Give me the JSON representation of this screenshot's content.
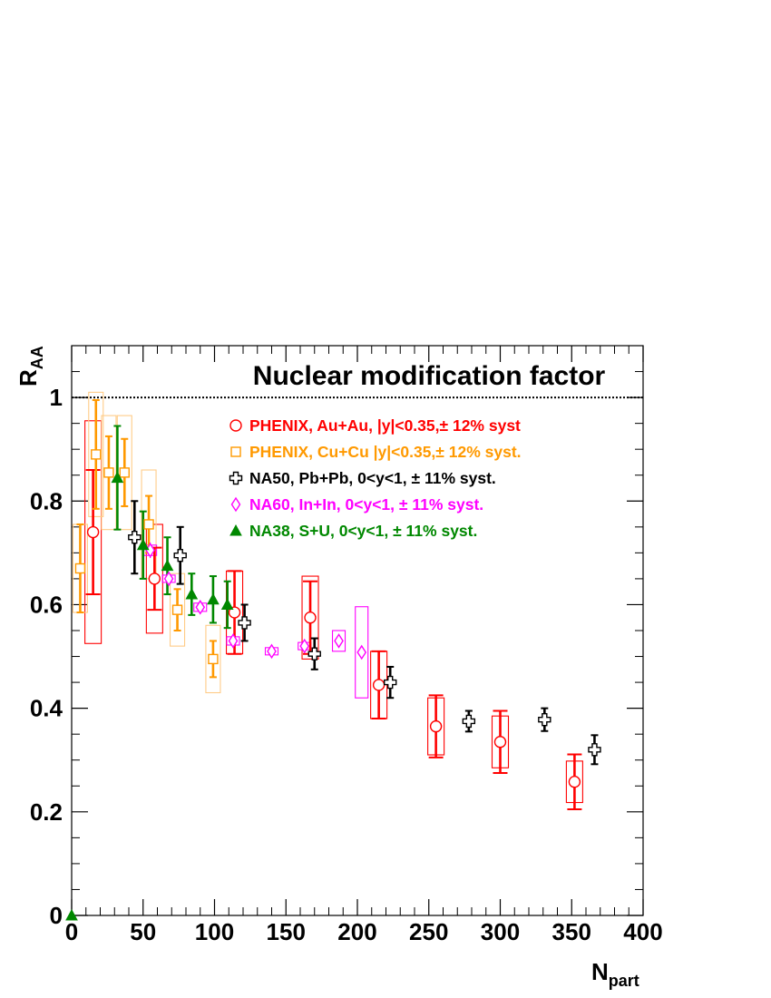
{
  "chart_data": {
    "type": "scatter",
    "title": "Nuclear modification factor",
    "xlabel_main": "N",
    "xlabel_sub": "part",
    "ylabel_main": "R",
    "ylabel_sub": "AA",
    "xlim": [
      0,
      400
    ],
    "ylim": [
      0,
      1.1
    ],
    "x_ticks": [
      0,
      50,
      100,
      150,
      200,
      250,
      300,
      350,
      400
    ],
    "x_tick_labels": [
      "0",
      "50",
      "100",
      "150",
      "200",
      "250",
      "300",
      "350",
      "400"
    ],
    "y_ticks": [
      0,
      0.2,
      0.4,
      0.6,
      0.8,
      1
    ],
    "y_tick_labels": [
      "0",
      "0.2",
      "0.4",
      "0.6",
      "0.8",
      "1"
    ],
    "reference_line": 1.0,
    "series": [
      {
        "name": "PHENIX, Au+Au, |y|<0.35,± 12% syst",
        "color": "#ff0000",
        "marker": "circle",
        "points": [
          {
            "x": 15,
            "y": 0.74,
            "err": 0.12,
            "sys": 0.215
          },
          {
            "x": 58,
            "y": 0.65,
            "err": 0.06,
            "sys": 0.105
          },
          {
            "x": 114,
            "y": 0.585,
            "err": 0.08,
            "sys": 0.08
          },
          {
            "x": 167,
            "y": 0.575,
            "err": 0.07,
            "sys": 0.08
          },
          {
            "x": 215,
            "y": 0.445,
            "err": 0.065,
            "sys": 0.065
          },
          {
            "x": 255,
            "y": 0.365,
            "err": 0.06,
            "sys": 0.055
          },
          {
            "x": 300,
            "y": 0.335,
            "err": 0.06,
            "sys": 0.05
          },
          {
            "x": 352,
            "y": 0.258,
            "err": 0.053,
            "sys": 0.04
          }
        ]
      },
      {
        "name": "PHENIX, Cu+Cu |y|<0.35,± 12% syst.",
        "color": "#ff9900",
        "marker": "square",
        "points": [
          {
            "x": 6,
            "y": 0.67,
            "err": 0.085,
            "sys": 0.085
          },
          {
            "x": 17,
            "y": 0.89,
            "err": 0.105,
            "sys": 0.12
          },
          {
            "x": 26,
            "y": 0.855,
            "err": 0.07,
            "sys": 0.11
          },
          {
            "x": 37,
            "y": 0.855,
            "err": 0.065,
            "sys": 0.11
          },
          {
            "x": 54,
            "y": 0.755,
            "err": 0.055,
            "sys": 0.105
          },
          {
            "x": 74,
            "y": 0.59,
            "err": 0.04,
            "sys": 0.07
          },
          {
            "x": 99,
            "y": 0.495,
            "err": 0.035,
            "sys": 0.065
          }
        ]
      },
      {
        "name": "NA50, Pb+Pb, 0<y<1, ± 11% syst.",
        "color": "#000000",
        "marker": "cross",
        "points": [
          {
            "x": 44,
            "y": 0.73,
            "err": 0.07
          },
          {
            "x": 76,
            "y": 0.695,
            "err": 0.055
          },
          {
            "x": 121,
            "y": 0.565,
            "err": 0.035
          },
          {
            "x": 170,
            "y": 0.505,
            "err": 0.03
          },
          {
            "x": 223,
            "y": 0.45,
            "err": 0.03
          },
          {
            "x": 278,
            "y": 0.375,
            "err": 0.02
          },
          {
            "x": 331,
            "y": 0.378,
            "err": 0.022
          },
          {
            "x": 366,
            "y": 0.32,
            "err": 0.028
          }
        ]
      },
      {
        "name": "NA60, In+In, 0<y<1, ± 11% syst.",
        "color": "#ff00ff",
        "marker": "diamond",
        "points": [
          {
            "x": 55,
            "y": 0.705,
            "err": 0.015,
            "sys": 0.01
          },
          {
            "x": 68,
            "y": 0.65,
            "err": 0.005,
            "sys": 0.007
          },
          {
            "x": 90,
            "y": 0.595,
            "err": 0.005,
            "sys": 0.008
          },
          {
            "x": 113,
            "y": 0.53,
            "err": 0.005,
            "sys": 0.008
          },
          {
            "x": 140,
            "y": 0.51,
            "err": 0.004,
            "sys": 0.007
          },
          {
            "x": 163,
            "y": 0.52,
            "err": 0.004,
            "sys": 0.007
          },
          {
            "x": 187,
            "y": 0.53,
            "err": 0.01,
            "sys": 0.02
          },
          {
            "x": 203,
            "y": 0.508,
            "err": 0.01,
            "sys": 0.088
          }
        ]
      },
      {
        "name": "NA38, S+U, 0<y<1, ± 11% syst.",
        "color": "#008800",
        "marker": "triangle",
        "points": [
          {
            "x": 0,
            "y": 0.0,
            "err": 0.0
          },
          {
            "x": 32,
            "y": 0.845,
            "err": 0.1
          },
          {
            "x": 50,
            "y": 0.715,
            "err": 0.065
          },
          {
            "x": 67,
            "y": 0.675,
            "err": 0.055
          },
          {
            "x": 84,
            "y": 0.62,
            "err": 0.04
          },
          {
            "x": 99,
            "y": 0.61,
            "err": 0.045
          },
          {
            "x": 109,
            "y": 0.6,
            "err": 0.045
          }
        ]
      }
    ]
  }
}
